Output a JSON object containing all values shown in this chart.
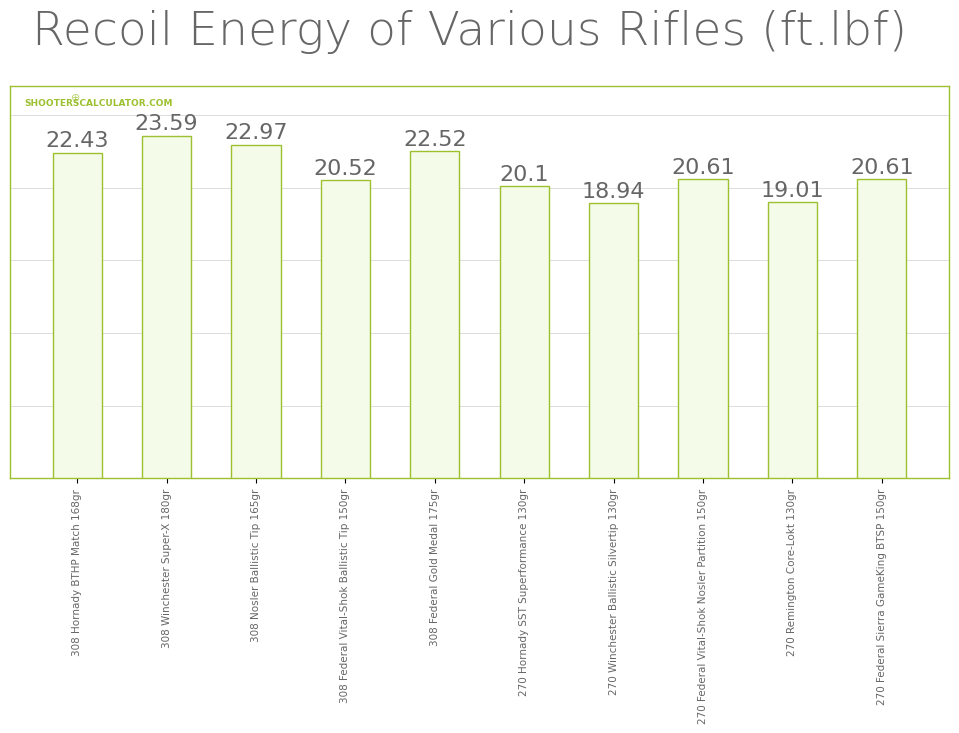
{
  "title": "Recoil Energy of Various Rifles (ft.lbf)",
  "categories": [
    "308 Hornady BTHP Match 168gr",
    "308 Winchester Super-X 180gr",
    "308 Nosler Ballistic Tip 165gr",
    "308 Federal Vital-Shok Ballistic Tip 150gr",
    "308 Federal Gold Medal 175gr",
    "270 Hornady SST Superformance 130gr",
    "270 Winchester Ballistic Silvertip 130gr",
    "270 Federal Vital-Shok Nosler Partition 150gr",
    "270 Remington Core-Lokt 130gr",
    "270 Federal Sierra GameKing BTSP 150gr"
  ],
  "values": [
    22.43,
    23.59,
    22.97,
    20.52,
    22.52,
    20.1,
    18.94,
    20.61,
    19.01,
    20.61
  ],
  "bar_face_color": "#f4fbe8",
  "bar_edge_color": "#9dc030",
  "bar_linewidth": 1.0,
  "value_label_color": "#666666",
  "value_label_fontsize": 16,
  "title_fontsize": 34,
  "title_color": "#666666",
  "xlabel_fontsize": 7.5,
  "xlabel_color": "#666666",
  "watermark_text": "SHOOTERSCALCULATOR.COM",
  "watermark_color": "#9dc030",
  "watermark_fontsize": 6.5,
  "grid_color": "#dddddd",
  "grid_linewidth": 0.7,
  "spine_color": "#9dc030",
  "spine_linewidth": 1.0,
  "ylim": [
    0,
    27
  ],
  "background_color": "#ffffff",
  "plot_bg_color": "#ffffff",
  "bar_width": 0.55
}
